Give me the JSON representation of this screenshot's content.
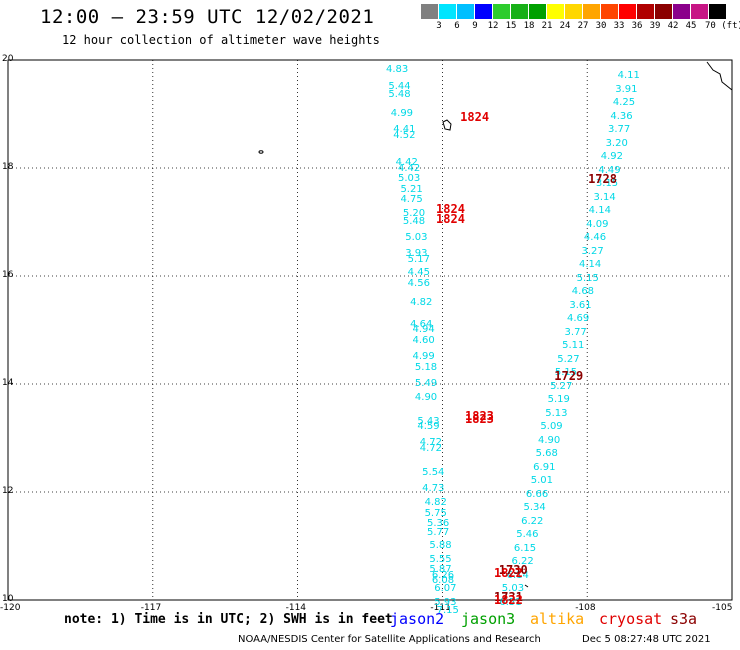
{
  "header": {
    "title": "12:00 – 23:59 UTC 12/02/2021",
    "subtitle": "12 hour collection of altimeter wave heights"
  },
  "color_scale": {
    "swatches": [
      "#808080",
      "#00e5ff",
      "#00bfff",
      "#0000ff",
      "#2ecc2e",
      "#17b017",
      "#00a000",
      "#ffff00",
      "#ffd700",
      "#ffa500",
      "#ff4500",
      "#ff0000",
      "#b00000",
      "#8b0000",
      "#8b008b",
      "#c71585",
      "#000000"
    ],
    "labels": [
      "3",
      "6",
      "9",
      "12",
      "15",
      "18",
      "21",
      "24",
      "27",
      "30",
      "33",
      "36",
      "39",
      "42",
      "45",
      "70 (ft)"
    ]
  },
  "axes": {
    "lon_labels": [
      "-120",
      "-117",
      "-114",
      "-111",
      "-108",
      "-105"
    ],
    "lat_labels": [
      "20",
      "18",
      "16",
      "14",
      "12",
      "10"
    ]
  },
  "chart_data": {
    "type": "scatter",
    "title": "12:00 – 23:59 UTC 12/02/2021",
    "subtitle": "12 hour collection of altimeter wave heights",
    "xlim": [
      -120,
      -105
    ],
    "ylim": [
      10,
      20
    ],
    "grid": true,
    "units": "ft",
    "track_west": {
      "satellite": "s3a",
      "lat": [
        19.81,
        19.5,
        19.36,
        19.0,
        18.7,
        18.6,
        18.1,
        17.98,
        17.8,
        17.6,
        17.4,
        17.15,
        17.0,
        16.7,
        16.4,
        16.3,
        16.05,
        15.85,
        15.5,
        15.1,
        15.0,
        14.8,
        14.5,
        14.3,
        14.0,
        13.75,
        13.3,
        13.2,
        12.9,
        12.8,
        12.35,
        12.05,
        11.8,
        11.6,
        11.4,
        11.25,
        11.0,
        10.75,
        10.55,
        10.45,
        10.35,
        10.2,
        9.95,
        9.8
      ],
      "lon": [
        -111.9,
        -111.85,
        -111.85,
        -111.8,
        -111.75,
        -111.75,
        -111.7,
        -111.65,
        -111.65,
        -111.6,
        -111.6,
        -111.55,
        -111.55,
        -111.5,
        -111.5,
        -111.45,
        -111.45,
        -111.45,
        -111.4,
        -111.4,
        -111.35,
        -111.35,
        -111.35,
        -111.3,
        -111.3,
        -111.3,
        -111.25,
        -111.25,
        -111.2,
        -111.2,
        -111.15,
        -111.15,
        -111.1,
        -111.1,
        -111.05,
        -111.05,
        -111.0,
        -111.0,
        -111.0,
        -110.95,
        -110.95,
        -110.9,
        -110.9,
        -110.85
      ],
      "swh": [
        4.83,
        5.44,
        5.48,
        4.99,
        4.41,
        4.52,
        4.42,
        4.42,
        5.03,
        5.21,
        4.75,
        5.2,
        5.48,
        5.03,
        3.93,
        5.17,
        4.45,
        4.56,
        4.82,
        4.64,
        4.94,
        4.6,
        4.99,
        5.18,
        5.49,
        4.9,
        5.43,
        4.59,
        4.72,
        4.72,
        5.54,
        4.73,
        4.82,
        5.75,
        5.36,
        5.77,
        5.88,
        5.55,
        5.87,
        6.26,
        6.08,
        6.07,
        5.93,
        7.15
      ]
    },
    "track_east": {
      "satellite": "cryosat",
      "lat": [
        19.7,
        19.45,
        19.2,
        18.95,
        18.7,
        18.45,
        18.2,
        17.95,
        17.7,
        17.45,
        17.2,
        16.95,
        16.7,
        16.45,
        16.2,
        15.95,
        15.7,
        15.45,
        15.2,
        14.95,
        14.7,
        14.45,
        14.2,
        13.95,
        13.7,
        13.45,
        13.2,
        12.95,
        12.7,
        12.45,
        12.2,
        11.95,
        11.7,
        11.45,
        11.2,
        10.95,
        10.7,
        10.45,
        10.2,
        9.95
      ],
      "lon": [
        -107.1,
        -107.15,
        -107.2,
        -107.25,
        -107.3,
        -107.35,
        -107.45,
        -107.5,
        -107.55,
        -107.6,
        -107.7,
        -107.75,
        -107.8,
        -107.85,
        -107.9,
        -107.95,
        -108.05,
        -108.1,
        -108.15,
        -108.2,
        -108.25,
        -108.35,
        -108.4,
        -108.5,
        -108.55,
        -108.6,
        -108.7,
        -108.75,
        -108.8,
        -108.85,
        -108.9,
        -109.0,
        -109.05,
        -109.1,
        -109.2,
        -109.25,
        -109.3,
        -109.4,
        -109.5,
        -109.55
      ],
      "swh": [
        4.11,
        3.91,
        4.25,
        4.36,
        3.77,
        3.2,
        4.92,
        4.49,
        3.15,
        3.14,
        4.14,
        4.09,
        4.46,
        3.27,
        4.14,
        5.15,
        4.68,
        3.61,
        4.69,
        3.77,
        5.11,
        5.27,
        5.15,
        5.27,
        5.19,
        5.13,
        5.09,
        4.9,
        5.68,
        6.91,
        5.01,
        6.66,
        5.34,
        6.22,
        5.46,
        6.15,
        6.22,
        6.14,
        5.03,
        6.51
      ]
    },
    "time_labels": [
      {
        "text": "1824",
        "lat": 18.95,
        "lon": -110.3,
        "satellite": "s3a"
      },
      {
        "text": "1824",
        "lat": 17.25,
        "lon": -110.8,
        "satellite": "s3a"
      },
      {
        "text": "1824",
        "lat": 17.05,
        "lon": -110.8,
        "satellite": "s3a"
      },
      {
        "text": "1728",
        "lat": 17.8,
        "lon": -107.65,
        "satellite": "cryosat"
      },
      {
        "text": "1729",
        "lat": 14.15,
        "lon": -108.35,
        "satellite": "cryosat"
      },
      {
        "text": "1823",
        "lat": 13.4,
        "lon": -110.2,
        "satellite": "s3a"
      },
      {
        "text": "1823",
        "lat": 13.35,
        "lon": -110.2,
        "satellite": "s3a"
      },
      {
        "text": "1730",
        "lat": 10.55,
        "lon": -109.5,
        "satellite": "cryosat"
      },
      {
        "text": "1822",
        "lat": 10.5,
        "lon": -109.6,
        "satellite": "s3a"
      },
      {
        "text": "1731",
        "lat": 10.05,
        "lon": -109.6,
        "satellite": "cryosat"
      },
      {
        "text": "1822",
        "lat": 10.0,
        "lon": -109.6,
        "satellite": "s3a"
      }
    ]
  },
  "colors": {
    "swh_text": "#00d8e6",
    "time_s3a": "#e00000",
    "time_cryosat": "#8b0000",
    "jason2": "#0000ff",
    "jason3": "#00a000",
    "altika": "#ffa500",
    "cryosat": "#e00000",
    "s3a": "#8b0000"
  },
  "footer": {
    "note": "note: 1) Time is in UTC; 2) SWH is in feet",
    "satellites": [
      "jason2",
      "jason3",
      "altika",
      "cryosat",
      "s3a"
    ],
    "credit": "NOAA/NESDIS Center for Satellite Applications and Research",
    "timestamp": "Dec  5 08:27:48 UTC 2021"
  }
}
